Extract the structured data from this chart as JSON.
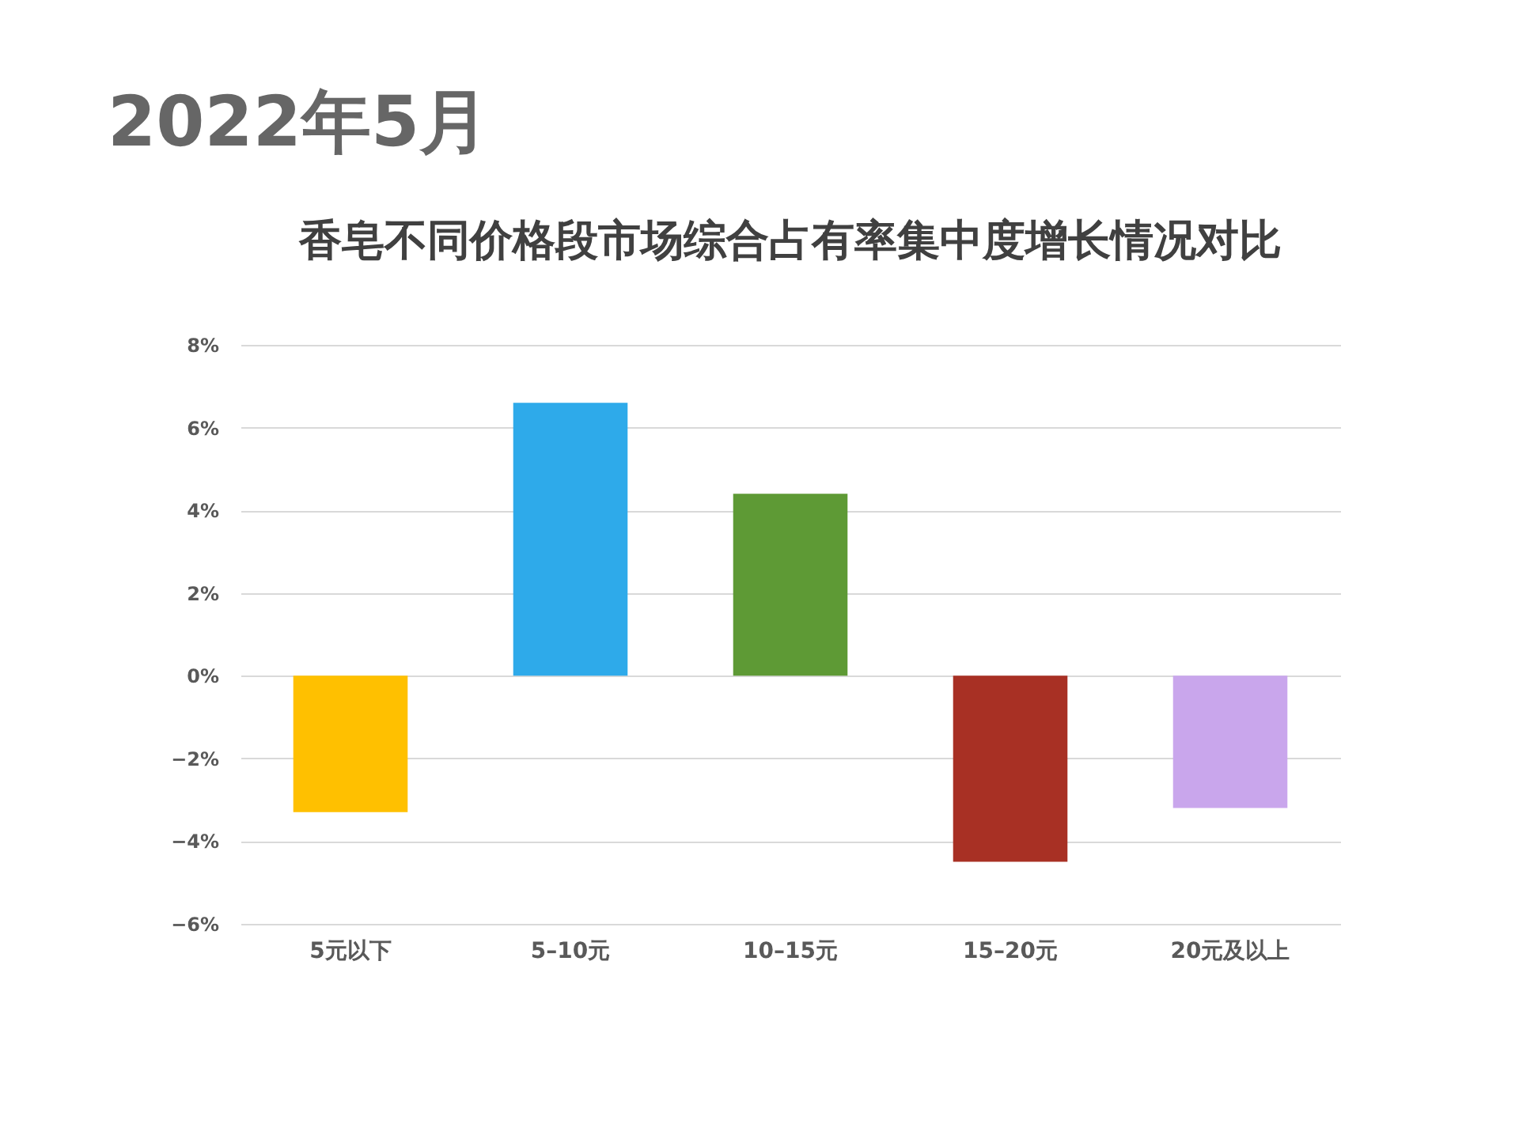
{
  "chart_data": {
    "type": "bar",
    "title": "香皂不同价格段市场综合占有率集中度增长情况对比",
    "annotations": [
      "2022年5月"
    ],
    "categories": [
      "5元以下",
      "5–10元",
      "10–15元",
      "15–20元",
      "20元及以上"
    ],
    "values": [
      -3.3,
      6.6,
      4.4,
      -4.5,
      -3.2
    ],
    "colors": [
      "#ffc000",
      "#2eaaea",
      "#5e9a35",
      "#a83024",
      "#c9a6ec"
    ],
    "ylim": [
      -6,
      8
    ],
    "yticks": [
      {
        "value": -6,
        "label": "−6%"
      },
      {
        "value": -4,
        "label": "−4%"
      },
      {
        "value": -2,
        "label": "−2%"
      },
      {
        "value": 0,
        "label": "0%"
      },
      {
        "value": 2,
        "label": "2%"
      },
      {
        "value": 4,
        "label": "4%"
      },
      {
        "value": 6,
        "label": "6%"
      },
      {
        "value": 8,
        "label": "8%"
      }
    ],
    "grid": "y",
    "legend": false
  }
}
